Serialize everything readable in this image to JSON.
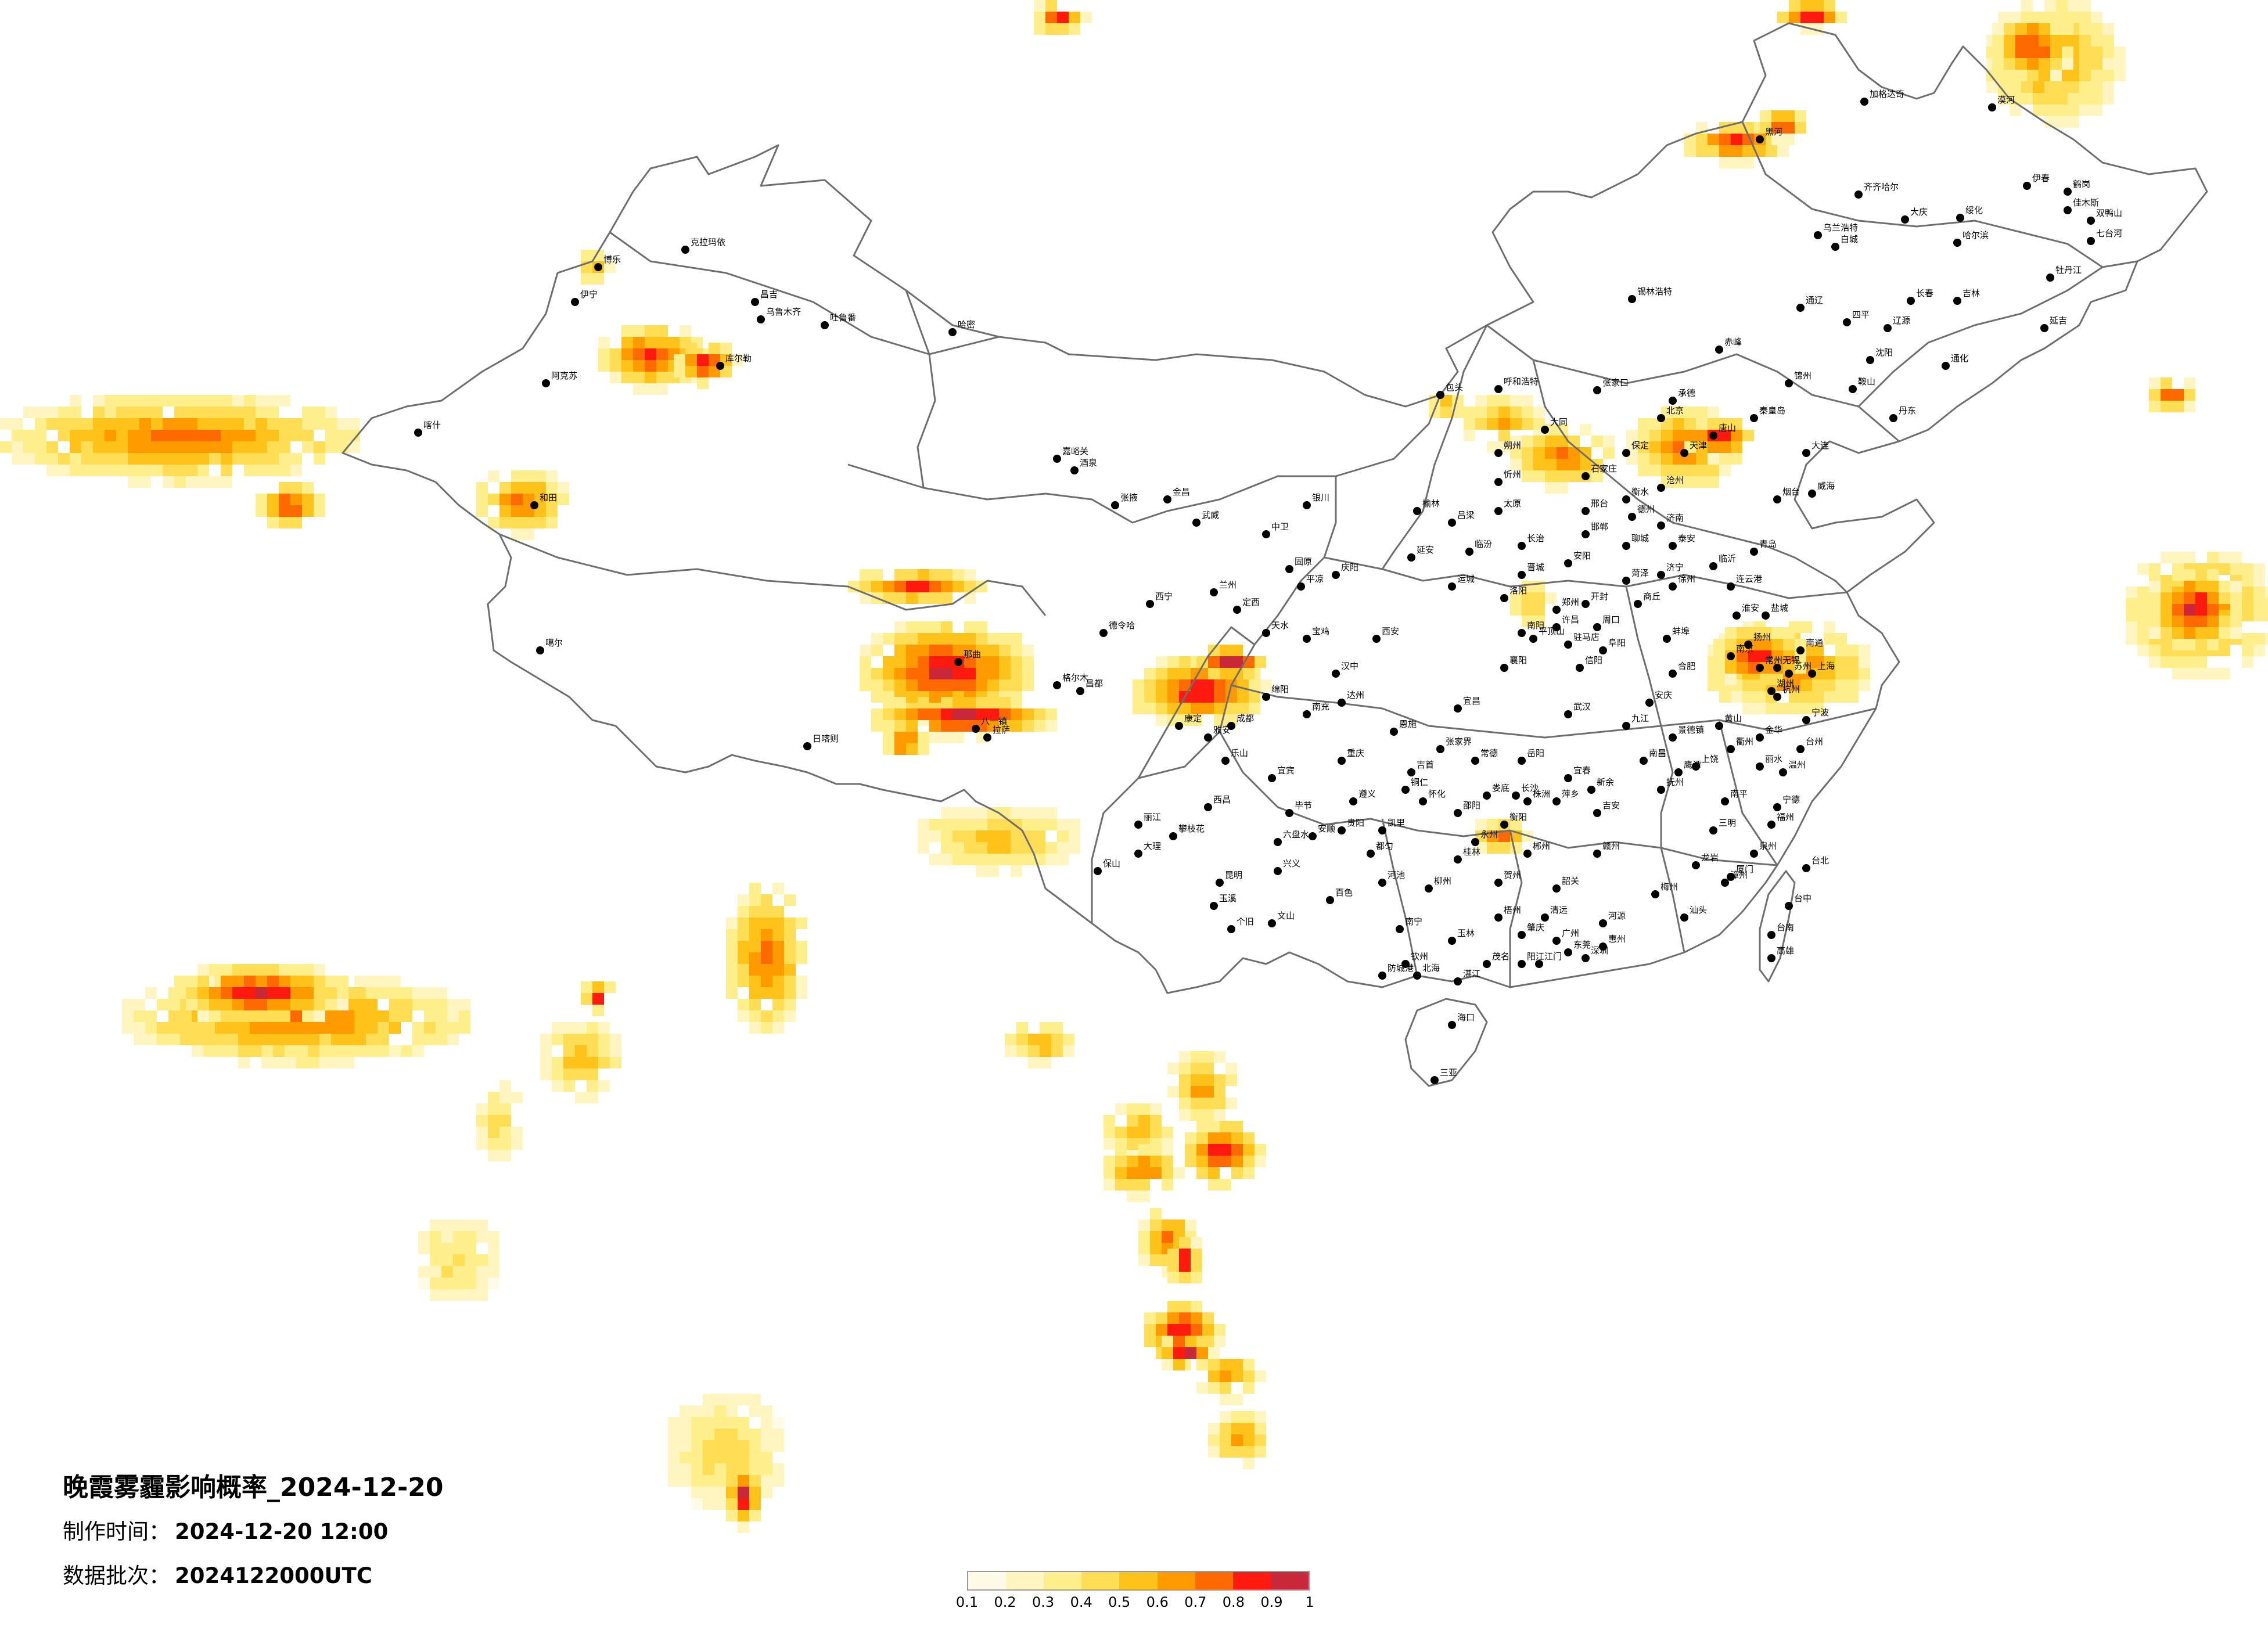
{
  "title": "晚霞雾霾影响概率_2024-12-20",
  "meta": {
    "made_label": "制作时间：",
    "made_value": "2024-12-20 12:00",
    "batch_label": "数据批次：",
    "batch_value": "2024122000UTC"
  },
  "legend": {
    "ticks": [
      "0.1",
      "0.2",
      "0.3",
      "0.4",
      "0.5",
      "0.6",
      "0.7",
      "0.8",
      "0.9",
      "1"
    ],
    "colors": [
      "#fffbe6",
      "#fff5c0",
      "#ffee8c",
      "#ffdd55",
      "#ffc21a",
      "#ff9a00",
      "#ff6a00",
      "#ff1a10",
      "#c8283a"
    ]
  },
  "colors": {
    "border": "#6e6e6e",
    "city": "#000000"
  },
  "cities": [
    {
      "name": "漠河"
    },
    {
      "name": "加格达奇"
    },
    {
      "name": "黑河"
    },
    {
      "name": "伊春"
    },
    {
      "name": "齐齐哈尔"
    },
    {
      "name": "大庆"
    },
    {
      "name": "绥化"
    },
    {
      "name": "鹤岗"
    },
    {
      "name": "佳木斯"
    },
    {
      "name": "双鸭山"
    },
    {
      "name": "七台河"
    },
    {
      "name": "哈尔滨"
    },
    {
      "name": "牡丹江"
    },
    {
      "name": "乌兰浩特"
    },
    {
      "name": "白城"
    },
    {
      "name": "长春"
    },
    {
      "name": "吉林"
    },
    {
      "name": "四平"
    },
    {
      "name": "辽源"
    },
    {
      "name": "通化"
    },
    {
      "name": "通辽"
    },
    {
      "name": "延吉"
    },
    {
      "name": "锡林浩特"
    },
    {
      "name": "赤峰"
    },
    {
      "name": "承德"
    },
    {
      "name": "呼和浩特"
    },
    {
      "name": "包头"
    },
    {
      "name": "张家口"
    },
    {
      "name": "北京"
    },
    {
      "name": "天津"
    },
    {
      "name": "石家庄"
    },
    {
      "name": "济南"
    },
    {
      "name": "青岛"
    },
    {
      "name": "烟台"
    },
    {
      "name": "威海"
    },
    {
      "name": "太原"
    },
    {
      "name": "郑州"
    },
    {
      "name": "西安"
    },
    {
      "name": "兰州"
    },
    {
      "name": "银川"
    },
    {
      "name": "西宁"
    },
    {
      "name": "乌鲁木齐"
    },
    {
      "name": "克拉玛依"
    },
    {
      "name": "伊宁"
    },
    {
      "name": "阿克苏"
    },
    {
      "name": "喀什"
    },
    {
      "name": "和田"
    },
    {
      "name": "哈密"
    },
    {
      "name": "库尔勒"
    },
    {
      "name": "吐鲁番"
    },
    {
      "name": "昌吉"
    },
    {
      "name": "博乐"
    },
    {
      "name": "格尔木"
    },
    {
      "name": "德令哈"
    },
    {
      "name": "拉萨"
    },
    {
      "name": "日喀则"
    },
    {
      "name": "那曲"
    },
    {
      "name": "八一镇"
    },
    {
      "name": "昌都"
    },
    {
      "name": "噶尔"
    },
    {
      "name": "成都"
    },
    {
      "name": "重庆"
    },
    {
      "name": "贵阳"
    },
    {
      "name": "昆明"
    },
    {
      "name": "南宁"
    },
    {
      "name": "广州"
    },
    {
      "name": "深圳"
    },
    {
      "name": "海口"
    },
    {
      "name": "三亚"
    },
    {
      "name": "长沙"
    },
    {
      "name": "武汉"
    },
    {
      "name": "南昌"
    },
    {
      "name": "福州"
    },
    {
      "name": "厦门"
    },
    {
      "name": "杭州"
    },
    {
      "name": "上海"
    },
    {
      "name": "南京"
    },
    {
      "name": "合肥"
    },
    {
      "name": "盐城"
    },
    {
      "name": "连云港"
    },
    {
      "name": "徐州"
    },
    {
      "name": "临沂"
    },
    {
      "name": "宁波"
    },
    {
      "name": "温州"
    },
    {
      "name": "台北"
    },
    {
      "name": "台中"
    },
    {
      "name": "台南"
    },
    {
      "name": "高雄"
    },
    {
      "name": "大理"
    },
    {
      "name": "丽江"
    },
    {
      "name": "保山"
    },
    {
      "name": "玉溪"
    },
    {
      "name": "个旧"
    },
    {
      "name": "文山"
    },
    {
      "name": "百色"
    },
    {
      "name": "河池"
    },
    {
      "name": "柳州"
    },
    {
      "name": "桂林"
    },
    {
      "name": "梧州"
    },
    {
      "name": "北海"
    },
    {
      "name": "湛江"
    },
    {
      "name": "茂名"
    },
    {
      "name": "阳江"
    },
    {
      "name": "韶关"
    },
    {
      "name": "赣州"
    },
    {
      "name": "吉安"
    },
    {
      "name": "宜春"
    },
    {
      "name": "衡阳"
    },
    {
      "name": "郴州"
    },
    {
      "name": "怀化"
    },
    {
      "name": "恩施"
    },
    {
      "name": "宜昌"
    },
    {
      "name": "襄阳"
    },
    {
      "name": "南阳"
    },
    {
      "name": "洛阳"
    },
    {
      "name": "延安"
    },
    {
      "name": "榆林"
    },
    {
      "name": "宝鸡"
    },
    {
      "name": "汉中"
    },
    {
      "name": "天水"
    },
    {
      "name": "定西"
    },
    {
      "name": "平凉"
    },
    {
      "name": "庆阳"
    },
    {
      "name": "固原"
    },
    {
      "name": "中卫"
    },
    {
      "name": "武威"
    },
    {
      "name": "张掖"
    },
    {
      "name": "酒泉"
    },
    {
      "name": "嘉峪关"
    },
    {
      "name": "金昌"
    },
    {
      "name": "绵阳"
    },
    {
      "name": "南充"
    },
    {
      "name": "达州"
    },
    {
      "name": "宜宾"
    },
    {
      "name": "乐山"
    },
    {
      "name": "雅安"
    },
    {
      "name": "康定"
    },
    {
      "name": "西昌"
    },
    {
      "name": "攀枝花"
    },
    {
      "name": "遵义"
    },
    {
      "name": "安顺"
    },
    {
      "name": "六盘水"
    },
    {
      "name": "兴义"
    },
    {
      "name": "凯里"
    },
    {
      "name": "都匀"
    },
    {
      "name": "铜仁"
    },
    {
      "name": "毕节"
    },
    {
      "name": "张家界"
    },
    {
      "name": "吉首"
    },
    {
      "name": "常德"
    },
    {
      "name": "岳阳"
    },
    {
      "name": "九江"
    },
    {
      "name": "景德镇"
    },
    {
      "name": "上饶"
    },
    {
      "name": "黄山"
    },
    {
      "name": "安庆"
    },
    {
      "name": "阜阳"
    },
    {
      "name": "蚌埠"
    },
    {
      "name": "淮安"
    },
    {
      "name": "扬州"
    },
    {
      "name": "苏州"
    },
    {
      "name": "无锡"
    },
    {
      "name": "常州"
    },
    {
      "name": "南通"
    },
    {
      "name": "湖州"
    },
    {
      "name": "金华"
    },
    {
      "name": "衢州"
    },
    {
      "name": "台州"
    },
    {
      "name": "丽水"
    },
    {
      "name": "宁德"
    },
    {
      "name": "南平"
    },
    {
      "name": "三明"
    },
    {
      "name": "龙岩"
    },
    {
      "name": "泉州"
    },
    {
      "name": "漳州"
    },
    {
      "name": "汕头"
    },
    {
      "name": "梅州"
    },
    {
      "name": "河源"
    },
    {
      "name": "惠州"
    },
    {
      "name": "东莞"
    },
    {
      "name": "江门"
    },
    {
      "name": "肇庆"
    },
    {
      "name": "清远"
    },
    {
      "name": "玉林"
    },
    {
      "name": "钦州"
    },
    {
      "name": "防城港"
    },
    {
      "name": "贺州"
    },
    {
      "name": "永州"
    },
    {
      "name": "邵阳"
    },
    {
      "name": "娄底"
    },
    {
      "name": "株洲"
    },
    {
      "name": "萍乡"
    },
    {
      "name": "新余"
    },
    {
      "name": "抚州"
    },
    {
      "name": "鹰潭"
    },
    {
      "name": "信阳"
    },
    {
      "name": "驻马店"
    },
    {
      "name": "周口"
    },
    {
      "name": "商丘"
    },
    {
      "name": "开封"
    },
    {
      "name": "许昌"
    },
    {
      "name": "平顶山"
    },
    {
      "name": "菏泽"
    },
    {
      "name": "济宁"
    },
    {
      "name": "泰安"
    },
    {
      "name": "聊城"
    },
    {
      "name": "德州"
    },
    {
      "name": "沧州"
    },
    {
      "name": "衡水"
    },
    {
      "name": "邢台"
    },
    {
      "name": "邯郸"
    },
    {
      "name": "安阳"
    },
    {
      "name": "长治"
    },
    {
      "name": "晋城"
    },
    {
      "name": "临汾"
    },
    {
      "name": "运城"
    },
    {
      "name": "吕梁"
    },
    {
      "name": "忻州"
    },
    {
      "name": "朔州"
    },
    {
      "name": "大同"
    },
    {
      "name": "保定"
    },
    {
      "name": "唐山"
    },
    {
      "name": "秦皇岛"
    },
    {
      "name": "锦州"
    },
    {
      "name": "沈阳"
    },
    {
      "name": "大连"
    },
    {
      "name": "丹东"
    },
    {
      "name": "鞍山"
    }
  ]
}
